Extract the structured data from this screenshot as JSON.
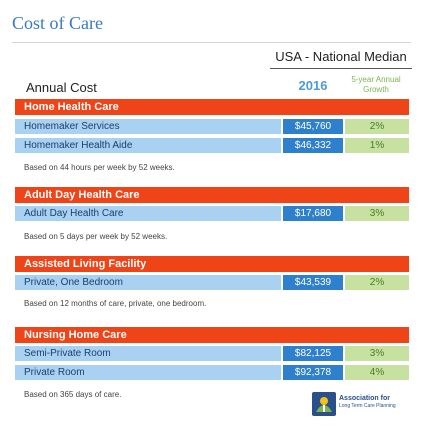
{
  "page_title": "Cost of Care",
  "region_title": "USA - National Median",
  "annual_cost_label": "Annual Cost",
  "year_label": "2016",
  "growth_label_line1": "5-year Annual",
  "growth_label_line2": "Growth",
  "sections": [
    {
      "title": "Home Health Care",
      "rows": [
        {
          "label": "Homemaker Services",
          "value": "$45,760",
          "growth": "2%"
        },
        {
          "label": "Homemaker Health Aide",
          "value": "$46,332",
          "growth": "1%"
        }
      ],
      "note": "Based on 44 hours per week by 52 weeks."
    },
    {
      "title": "Adult Day Health Care",
      "rows": [
        {
          "label": "Adult Day Health Care",
          "value": "$17,680",
          "growth": "3%"
        }
      ],
      "note": "Based on 5 days per week by 52 weeks."
    },
    {
      "title": "Assisted Living Facility",
      "rows": [
        {
          "label": "Private, One Bedroom",
          "value": "$43,539",
          "growth": "2%"
        }
      ],
      "note": "Based on 12 months of care, private, one bedroom."
    },
    {
      "title": "Nursing Home Care",
      "rows": [
        {
          "label": "Semi-Private Room",
          "value": "$82,125",
          "growth": "3%"
        },
        {
          "label": "Private Room",
          "value": "$92,378",
          "growth": "4%"
        }
      ],
      "note": "Based on 365 days of care."
    }
  ],
  "logo": {
    "line1": "Association for",
    "line2": "Long Term Care Planning"
  },
  "colors": {
    "header_orange": "#ef4318",
    "label_blue": "#a9d1f2",
    "value_blue": "#2f80cc",
    "growth_green": "#c7e1a1"
  }
}
